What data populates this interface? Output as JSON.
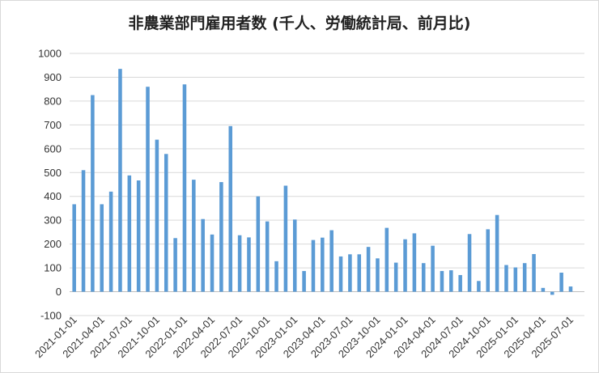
{
  "chart_data": {
    "type": "bar",
    "title": "非農業部門雇用者数 (千人、労働統計局、前月比)",
    "xlabel": "",
    "ylabel": "",
    "ylim": [
      -100,
      1000
    ],
    "yticks": [
      "1000",
      "900",
      "800",
      "700",
      "600",
      "500",
      "400",
      "300",
      "200",
      "100",
      "0",
      "-100"
    ],
    "xtick_labels": [
      "2021-01-01",
      "2021-04-01",
      "2021-07-01",
      "2021-10-01",
      "2022-01-01",
      "2022-04-01",
      "2022-07-01",
      "2022-10-01",
      "2023-01-01",
      "2023-04-01",
      "2023-07-01",
      "2023-10-01",
      "2024-01-01",
      "2024-04-01",
      "2024-07-01",
      "2024-10-01",
      "2025-01-01",
      "2025-04-01",
      "2025-07-01"
    ],
    "grid": true,
    "bar_color": "#5b9bd5",
    "categories": [
      "2021-01",
      "2021-02",
      "2021-03",
      "2021-04",
      "2021-05",
      "2021-06",
      "2021-07",
      "2021-08",
      "2021-09",
      "2021-10",
      "2021-11",
      "2021-12",
      "2022-01",
      "2022-02",
      "2022-03",
      "2022-04",
      "2022-05",
      "2022-06",
      "2022-07",
      "2022-08",
      "2022-09",
      "2022-10",
      "2022-11",
      "2022-12",
      "2023-01",
      "2023-02",
      "2023-03",
      "2023-04",
      "2023-05",
      "2023-06",
      "2023-07",
      "2023-08",
      "2023-09",
      "2023-10",
      "2023-11",
      "2023-12",
      "2024-01",
      "2024-02",
      "2024-03",
      "2024-04",
      "2024-05",
      "2024-06",
      "2024-07",
      "2024-08",
      "2024-09",
      "2024-10",
      "2024-11",
      "2024-12",
      "2025-01",
      "2025-02",
      "2025-03",
      "2025-04",
      "2025-05",
      "2025-06",
      "2025-07",
      "2025-08"
    ],
    "values": [
      367,
      510,
      825,
      367,
      420,
      935,
      488,
      467,
      860,
      638,
      578,
      225,
      870,
      470,
      305,
      240,
      460,
      695,
      237,
      228,
      400,
      295,
      128,
      445,
      303,
      87,
      217,
      227,
      258,
      148,
      157,
      157,
      188,
      140,
      268,
      122,
      220,
      245,
      120,
      193,
      87,
      90,
      70,
      242,
      45,
      262,
      322,
      112,
      102,
      120,
      158,
      16,
      -13,
      80,
      22,
      0
    ]
  }
}
